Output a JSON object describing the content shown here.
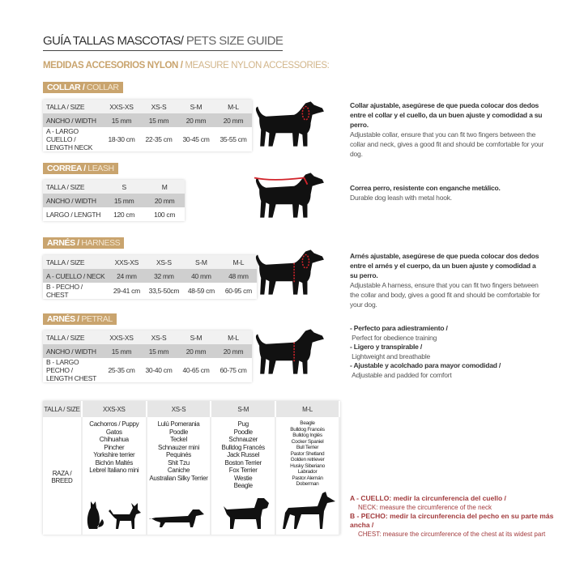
{
  "title": {
    "es": "GUÍA TALLAS MASCOTAS/",
    "en": " PETS SIZE GUIDE"
  },
  "subtitle": {
    "es": "MEDIDAS ACCESORIOS NYLON /",
    "en": " MEASURE NYLON ACCESSORIES:"
  },
  "sections": [
    {
      "label_es": "COLLAR /",
      "label_en": " COLLAR",
      "rows": [
        [
          "TALLA / SIZE",
          "XXS-XS",
          "XS-S",
          "S-M",
          "M-L"
        ],
        [
          "ANCHO / WIDTH",
          "15 mm",
          "15 mm",
          "20 mm",
          "20 mm"
        ],
        [
          "A - LARGO CUELLO / LENGTH NECK",
          "18-30 cm",
          "22-35 cm",
          "30-45 cm",
          "35-55 cm"
        ]
      ],
      "desc_es": "Collar ajustable, asegúrese de que pueda colocar dos dedos entre el collar y el cuello, da un buen ajuste y comodidad a su perro.",
      "desc_en": "Adjustable collar, ensure that you can fit two fingers between the collar and neck, gives a good fit and should be comfortable for your dog."
    },
    {
      "label_es": "CORREA /",
      "label_en": " LEASH",
      "rows": [
        [
          "TALLA / SIZE",
          "S",
          "M"
        ],
        [
          "ANCHO / WIDTH",
          "15 mm",
          "20 mm"
        ],
        [
          "LARGO / LENGTH",
          "120 cm",
          "100 cm"
        ]
      ],
      "desc_es": "Correa perro, resistente con enganche metálico.",
      "desc_en": "Durable dog leash with metal hook."
    },
    {
      "label_es": "ARNÉS /",
      "label_en": " HARNESS",
      "rows": [
        [
          "TALLA / SIZE",
          "XXS-XS",
          "XS-S",
          "S-M",
          "M-L"
        ],
        [
          "A - CUELLO / NECK",
          "24 mm",
          "32 mm",
          "40 mm",
          "48 mm"
        ],
        [
          "B - PECHO / CHEST",
          "29-41 cm",
          "33,5-50cm",
          "48-59 cm",
          "60-95 cm"
        ]
      ],
      "desc_es": "Arnés ajustable, asegúrese de que pueda colocar dos dedos entre el arnés y el cuerpo, da un buen ajuste y comodidad a su perro.",
      "desc_en": "Adjustable A harness, ensure that you can fit two fingers between the collar and body, gives a good fit and should be comfortable for your dog."
    },
    {
      "label_es": "ARNÉS /",
      "label_en": " PETRAL",
      "rows": [
        [
          "TALLA / SIZE",
          "XXS-XS",
          "XS-S",
          "S-M",
          "M-L"
        ],
        [
          "ANCHO / WIDTH",
          "15 mm",
          "15 mm",
          "20 mm",
          "20 mm"
        ],
        [
          "B - LARGO PECHO / LENGTH CHEST",
          "25-35 cm",
          "30-40 cm",
          "40-65 cm",
          "60-75 cm"
        ]
      ],
      "bullets": [
        {
          "es": "- Perfecto para adiestramiento /",
          "en": "Perfect for obedience training"
        },
        {
          "es": "- Ligero y transpirable /",
          "en": "Lightweight and breathable"
        },
        {
          "es": "- Ajustable y acolchado para mayor comodidad /",
          "en": "Adjustable and padded for comfort"
        }
      ]
    }
  ],
  "breed_table": {
    "headers": [
      "TALLA / SIZE",
      "XXS-XS",
      "XS-S",
      "S-M",
      "M-L"
    ],
    "row_label": "RAZA / BREED",
    "columns": [
      [
        "Cachorros / Puppy",
        "Gatos",
        "Chihuahua",
        "Pincher",
        "Yorkshire terrier",
        "Bichón Maltés",
        "Lebrel Italiano mini"
      ],
      [
        "Lulú Pomerania",
        "Poodle",
        "Teckel",
        "Schnauzer mini",
        "Pequinés",
        "Shit Tzu",
        "Caniche",
        "Australian Silky Terrier"
      ],
      [
        "Pug",
        "Poodle",
        "Schnauzer",
        "Bulldog Francés",
        "Jack Russel",
        "Boston Terrier",
        "Fox Terrier",
        "Westie",
        "Beagle"
      ],
      [
        "Beagle",
        "Bulldog Francés",
        "Bulldog Inglés",
        "Cocker Spaniel",
        "Bull Terrier",
        "Pastor Shetland",
        "Golden retriever",
        "Husky Siberiano",
        "Labrador",
        "Pastor Alemán",
        "Doberman"
      ]
    ]
  },
  "notes": [
    {
      "es": "A - CUELLO: medir la circunferencia del cuello /",
      "en": "NECK: measure the circumference of the neck"
    },
    {
      "es": "B - PECHO: medir la circunferencia del pecho en su parte más ancha /",
      "en": "CHEST: measure the circumference of the chest at its widest part"
    }
  ],
  "colors": {
    "gold": "#c9a46e",
    "red": "#a23a3c",
    "mark_red": "#d2232a",
    "silhouette": "#111111"
  }
}
